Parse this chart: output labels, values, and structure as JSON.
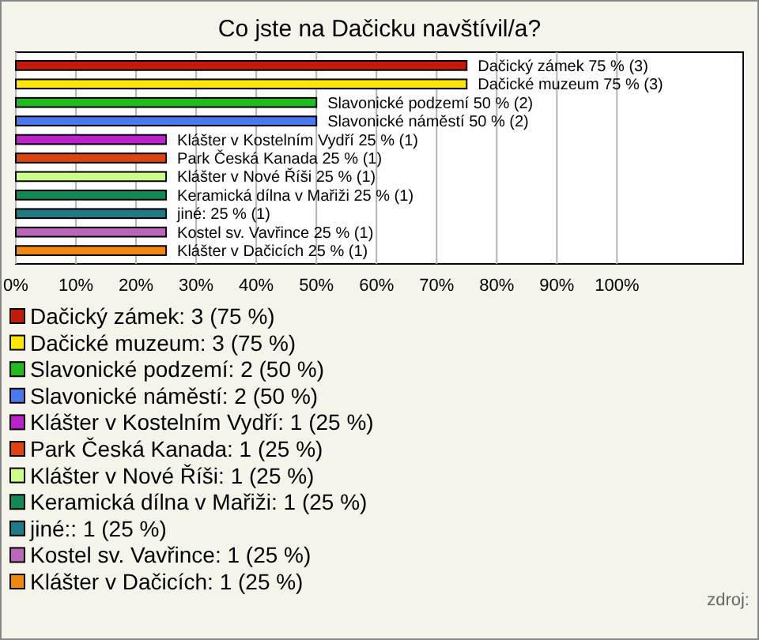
{
  "chart_data": {
    "type": "bar",
    "orientation": "horizontal",
    "stacked": true,
    "title": "Co jste na Dačicku navštívil/a?",
    "categories": [
      null,
      null,
      null,
      null,
      null,
      null,
      null,
      null,
      null,
      null,
      null
    ],
    "series": [
      {
        "name": "Dačický zámek: 3 (75 %)",
        "color": "#c41a0c",
        "values": [
          75,
          null,
          null,
          null,
          null,
          null,
          null,
          null,
          null,
          null,
          null
        ],
        "value_labels": [
          "Dačický zámek 75 % (3)",
          null,
          null,
          null,
          null,
          null,
          null,
          null,
          null,
          null,
          null
        ]
      },
      {
        "name": "Dačické muzeum: 3 (75 %)",
        "color": "#ffe600",
        "values": [
          null,
          75,
          null,
          null,
          null,
          null,
          null,
          null,
          null,
          null,
          null
        ],
        "value_labels": [
          null,
          "Dačické muzeum 75 % (3)",
          null,
          null,
          null,
          null,
          null,
          null,
          null,
          null,
          null
        ]
      },
      {
        "name": "Slavonické podzemí: 2 (50 %)",
        "color": "#1fbb1f",
        "values": [
          null,
          null,
          50,
          null,
          null,
          null,
          null,
          null,
          null,
          null,
          null
        ],
        "value_labels": [
          null,
          null,
          "Slavonické podzemí 50 % (2)",
          null,
          null,
          null,
          null,
          null,
          null,
          null,
          null
        ]
      },
      {
        "name": "Slavonické náměstí: 2 (50 %)",
        "color": "#4a78ee",
        "values": [
          null,
          null,
          null,
          50,
          null,
          null,
          null,
          null,
          null,
          null,
          null
        ],
        "value_labels": [
          null,
          null,
          null,
          "Slavonické náměstí 50 % (2)",
          null,
          null,
          null,
          null,
          null,
          null,
          null
        ]
      },
      {
        "name": "Klášter v Kostelním Vydří: 1 (25 %)",
        "color": "#bb22cc",
        "values": [
          null,
          null,
          null,
          null,
          25,
          null,
          null,
          null,
          null,
          null,
          null
        ],
        "value_labels": [
          null,
          null,
          null,
          null,
          "Klášter v Kostelním Vydří 25 % (1)",
          null,
          null,
          null,
          null,
          null,
          null
        ]
      },
      {
        "name": "Park Česká Kanada: 1 (25 %)",
        "color": "#dd4411",
        "values": [
          null,
          null,
          null,
          null,
          null,
          25,
          null,
          null,
          null,
          null,
          null
        ],
        "value_labels": [
          null,
          null,
          null,
          null,
          null,
          "Park Česká Kanada 25 % (1)",
          null,
          null,
          null,
          null,
          null
        ]
      },
      {
        "name": "Klášter v Nové Říši: 1 (25 %)",
        "color": "#ccff88",
        "values": [
          null,
          null,
          null,
          null,
          null,
          null,
          25,
          null,
          null,
          null,
          null
        ],
        "value_labels": [
          null,
          null,
          null,
          null,
          null,
          null,
          "Klášter v Nové Říši 25 % (1)",
          null,
          null,
          null,
          null
        ]
      },
      {
        "name": "Keramická dílna v Mařiži: 1 (25 %)",
        "color": "#118855",
        "values": [
          null,
          null,
          null,
          null,
          null,
          null,
          null,
          25,
          null,
          null,
          null
        ],
        "value_labels": [
          null,
          null,
          null,
          null,
          null,
          null,
          null,
          "Keramická dílna v Mařiži 25 % (1)",
          null,
          null,
          null
        ]
      },
      {
        "name": "jiné:: 1 (25 %)",
        "color": "#1f7a88",
        "values": [
          null,
          null,
          null,
          null,
          null,
          null,
          null,
          null,
          25,
          null,
          null
        ],
        "value_labels": [
          null,
          null,
          null,
          null,
          null,
          null,
          null,
          null,
          "jiné: 25 % (1)",
          null,
          null
        ]
      },
      {
        "name": "Kostel sv. Vavřince: 1 (25 %)",
        "color": "#bb66bb",
        "values": [
          null,
          null,
          null,
          null,
          null,
          null,
          null,
          null,
          null,
          25,
          null
        ],
        "value_labels": [
          null,
          null,
          null,
          null,
          null,
          null,
          null,
          null,
          null,
          "Kostel sv. Vavřince 25 % (1)",
          null
        ]
      },
      {
        "name": "Klášter v Dačicích: 1 (25 %)",
        "color": "#ee8811",
        "values": [
          null,
          null,
          null,
          null,
          null,
          null,
          null,
          null,
          null,
          null,
          25
        ],
        "value_labels": [
          null,
          null,
          null,
          null,
          null,
          null,
          null,
          null,
          null,
          null,
          "Klášter v Dačicích 25 % (1)"
        ]
      }
    ],
    "xlim": [
      0,
      121
    ],
    "xticks": [
      {
        "value": 0,
        "label": "0%"
      },
      {
        "value": 10,
        "label": "10%"
      },
      {
        "value": 20,
        "label": "20%"
      },
      {
        "value": 30,
        "label": "30%"
      },
      {
        "value": 40,
        "label": "40%"
      },
      {
        "value": 50,
        "label": "50%"
      },
      {
        "value": 60,
        "label": "60%"
      },
      {
        "value": 70,
        "label": "70%"
      },
      {
        "value": 80,
        "label": "80%"
      },
      {
        "value": 90,
        "label": "90%"
      },
      {
        "value": 100,
        "label": "100%"
      }
    ],
    "grid": "x",
    "legend": "bottom",
    "tick_labels": "x",
    "annotations": [
      "zdroj:"
    ]
  }
}
